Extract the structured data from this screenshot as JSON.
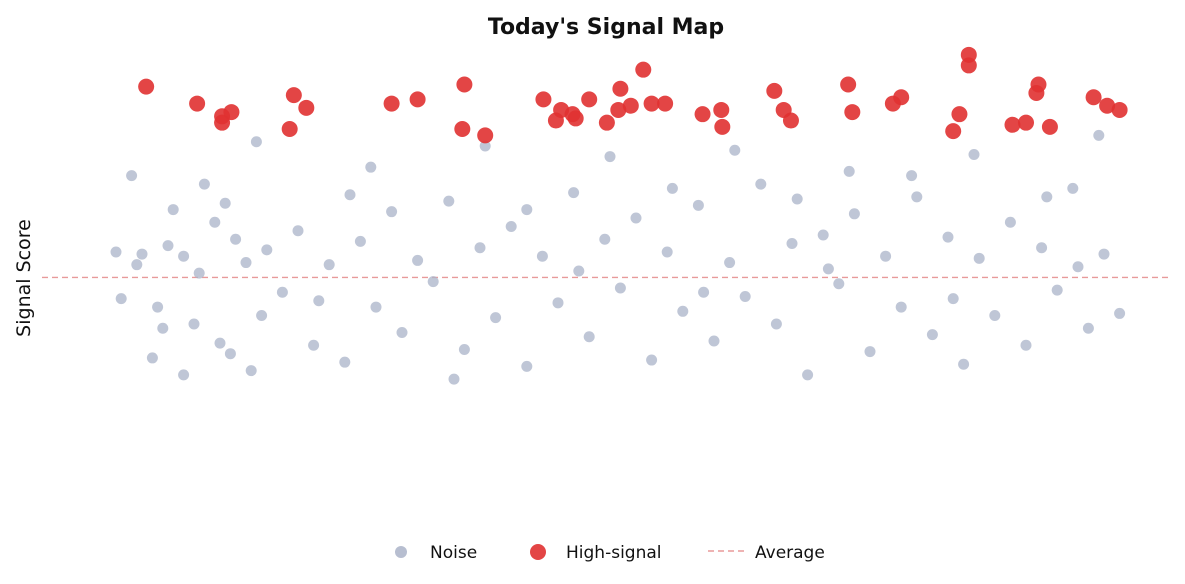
{
  "chart_data": {
    "type": "scatter",
    "title": "Today's Signal Map",
    "xlabel": "",
    "ylabel": "Signal Score",
    "xlim": [
      0,
      1
    ],
    "ylim": [
      -3.6,
      5.6
    ],
    "grid": false,
    "legend_placement": "bottom-center",
    "average": 0.0,
    "series": [
      {
        "name": "Noise",
        "color": "#aab3c8",
        "points": [
          [
            0.025,
            0.6
          ],
          [
            0.05,
            0.55
          ],
          [
            0.065,
            -0.7
          ],
          [
            0.08,
            1.6
          ],
          [
            0.09,
            0.5
          ],
          [
            0.105,
            0.1
          ],
          [
            0.12,
            1.3
          ],
          [
            0.135,
            -1.8
          ],
          [
            0.15,
            0.35
          ],
          [
            0.165,
            -0.9
          ],
          [
            0.03,
            -0.5
          ],
          [
            0.045,
            0.3
          ],
          [
            0.06,
            -1.9
          ],
          [
            0.075,
            0.75
          ],
          [
            0.09,
            -2.3
          ],
          [
            0.1,
            -1.1
          ],
          [
            0.11,
            2.2
          ],
          [
            0.125,
            -1.55
          ],
          [
            0.14,
            0.9
          ],
          [
            0.155,
            -2.2
          ],
          [
            0.17,
            0.65
          ],
          [
            0.185,
            -0.35
          ],
          [
            0.2,
            1.1
          ],
          [
            0.215,
            -1.6
          ],
          [
            0.23,
            0.3
          ],
          [
            0.245,
            -2.0
          ],
          [
            0.26,
            0.85
          ],
          [
            0.275,
            -0.7
          ],
          [
            0.29,
            1.55
          ],
          [
            0.3,
            -1.3
          ],
          [
            0.315,
            0.4
          ],
          [
            0.33,
            -0.1
          ],
          [
            0.345,
            1.8
          ],
          [
            0.36,
            -1.7
          ],
          [
            0.375,
            0.7
          ],
          [
            0.39,
            -0.95
          ],
          [
            0.405,
            1.2
          ],
          [
            0.42,
            -2.1
          ],
          [
            0.435,
            0.5
          ],
          [
            0.45,
            -0.6
          ],
          [
            0.465,
            2.0
          ],
          [
            0.48,
            -1.4
          ],
          [
            0.495,
            0.9
          ],
          [
            0.51,
            -0.25
          ],
          [
            0.525,
            1.4
          ],
          [
            0.54,
            -1.95
          ],
          [
            0.555,
            0.6
          ],
          [
            0.57,
            -0.8
          ],
          [
            0.585,
            1.7
          ],
          [
            0.6,
            -1.5
          ],
          [
            0.615,
            0.35
          ],
          [
            0.63,
            -0.45
          ],
          [
            0.645,
            2.2
          ],
          [
            0.66,
            -1.1
          ],
          [
            0.675,
            0.8
          ],
          [
            0.69,
            -2.3
          ],
          [
            0.705,
            1.0
          ],
          [
            0.72,
            -0.15
          ],
          [
            0.735,
            1.5
          ],
          [
            0.75,
            -1.75
          ],
          [
            0.765,
            0.5
          ],
          [
            0.78,
            -0.7
          ],
          [
            0.795,
            1.9
          ],
          [
            0.81,
            -1.35
          ],
          [
            0.825,
            0.95
          ],
          [
            0.84,
            -2.05
          ],
          [
            0.855,
            0.45
          ],
          [
            0.87,
            -0.9
          ],
          [
            0.885,
            1.3
          ],
          [
            0.9,
            -1.6
          ],
          [
            0.915,
            0.7
          ],
          [
            0.93,
            -0.3
          ],
          [
            0.945,
            2.1
          ],
          [
            0.96,
            -1.2
          ],
          [
            0.975,
            0.55
          ],
          [
            0.99,
            -0.85
          ],
          [
            0.04,
            2.4
          ],
          [
            0.16,
            3.2
          ],
          [
            0.27,
            2.6
          ],
          [
            0.38,
            3.1
          ],
          [
            0.5,
            2.85
          ],
          [
            0.62,
            3.0
          ],
          [
            0.73,
            2.5
          ],
          [
            0.85,
            2.9
          ],
          [
            0.97,
            3.35
          ],
          [
            0.07,
            -1.2
          ],
          [
            0.22,
            -0.55
          ],
          [
            0.35,
            -2.4
          ],
          [
            0.47,
            0.15
          ],
          [
            0.59,
            -0.35
          ],
          [
            0.71,
            0.2
          ],
          [
            0.83,
            -0.5
          ],
          [
            0.95,
            0.25
          ],
          [
            0.13,
            1.75
          ],
          [
            0.25,
            1.95
          ],
          [
            0.42,
            1.6
          ],
          [
            0.56,
            2.1
          ],
          [
            0.68,
            1.85
          ],
          [
            0.79,
            2.4
          ],
          [
            0.92,
            1.9
          ]
        ]
      },
      {
        "name": "High-signal",
        "color": "#e03131",
        "points": [
          [
            0.054,
            4.5
          ],
          [
            0.103,
            4.1
          ],
          [
            0.127,
            3.8
          ],
          [
            0.136,
            3.9
          ],
          [
            0.127,
            3.65
          ],
          [
            0.192,
            3.5
          ],
          [
            0.196,
            4.3
          ],
          [
            0.208,
            4.0
          ],
          [
            0.29,
            4.1
          ],
          [
            0.315,
            4.2
          ],
          [
            0.36,
            4.55
          ],
          [
            0.358,
            3.5
          ],
          [
            0.38,
            3.35
          ],
          [
            0.436,
            4.2
          ],
          [
            0.453,
            3.95
          ],
          [
            0.448,
            3.7
          ],
          [
            0.464,
            3.85
          ],
          [
            0.467,
            3.75
          ],
          [
            0.48,
            4.2
          ],
          [
            0.497,
            3.65
          ],
          [
            0.508,
            3.95
          ],
          [
            0.51,
            4.45
          ],
          [
            0.52,
            4.05
          ],
          [
            0.532,
            4.9
          ],
          [
            0.54,
            4.1
          ],
          [
            0.553,
            4.1
          ],
          [
            0.589,
            3.85
          ],
          [
            0.607,
            3.95
          ],
          [
            0.608,
            3.55
          ],
          [
            0.658,
            4.4
          ],
          [
            0.667,
            3.95
          ],
          [
            0.674,
            3.7
          ],
          [
            0.729,
            4.55
          ],
          [
            0.733,
            3.9
          ],
          [
            0.772,
            4.1
          ],
          [
            0.78,
            4.25
          ],
          [
            0.83,
            3.45
          ],
          [
            0.836,
            3.85
          ],
          [
            0.845,
            5.0
          ],
          [
            0.845,
            5.25
          ],
          [
            0.887,
            3.6
          ],
          [
            0.9,
            3.65
          ],
          [
            0.91,
            4.35
          ],
          [
            0.912,
            4.55
          ],
          [
            0.923,
            3.55
          ],
          [
            0.965,
            4.25
          ],
          [
            0.978,
            4.05
          ],
          [
            0.99,
            3.95
          ]
        ]
      }
    ]
  },
  "legend": {
    "noise_label": "Noise",
    "high_label": "High-signal",
    "average_label": "Average"
  }
}
